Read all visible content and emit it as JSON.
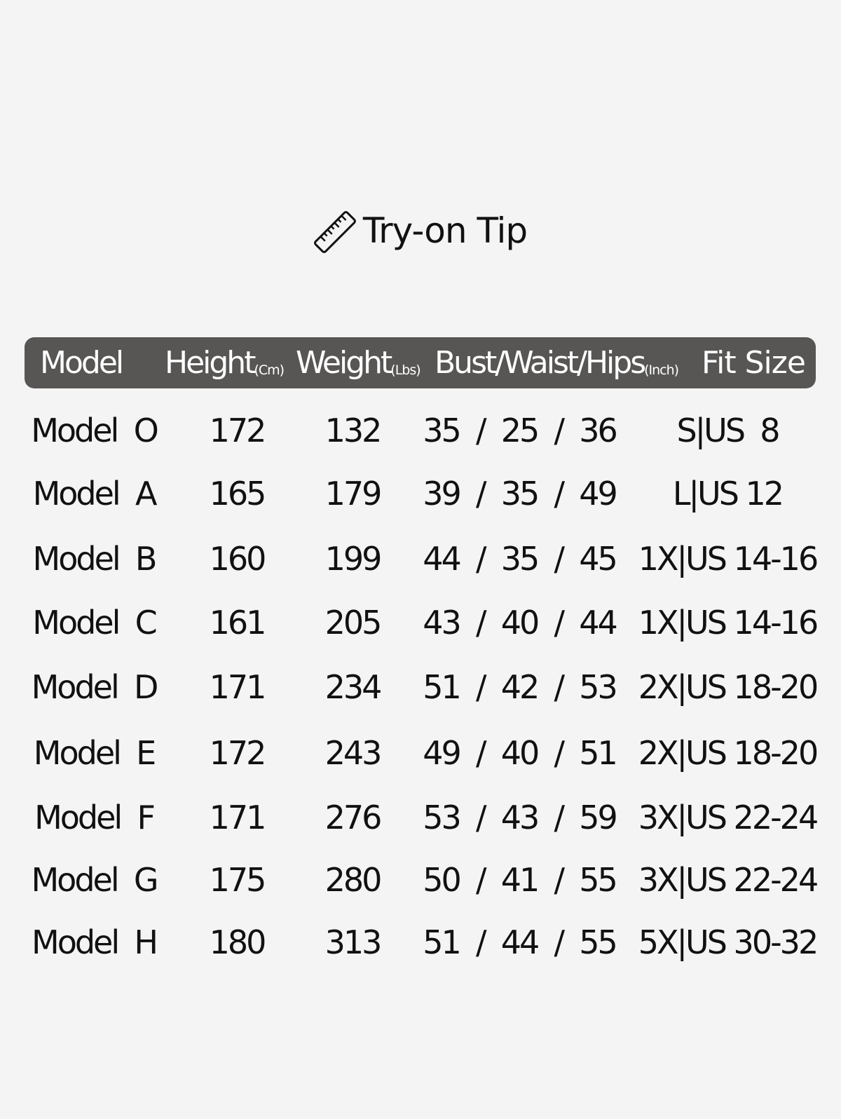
{
  "title": {
    "icon": "ruler-icon",
    "text": "Try-on Tip"
  },
  "header": {
    "model": "Model",
    "height": "Height",
    "height_unit": "(Cm)",
    "weight": "Weight",
    "weight_unit": "(Lbs)",
    "bwh": "Bust/Waist/Hips",
    "bwh_unit": "(Inch)",
    "fit": "Fit Size"
  },
  "colors": {
    "header_bg": "#575655",
    "background": "#f4f4f4"
  },
  "rows": [
    {
      "model": "Model  O",
      "height": "172",
      "weight": "132",
      "bwh": "35  /  25  /  36",
      "fit": "S|US  8"
    },
    {
      "model": "Model  A",
      "height": "165",
      "weight": "179",
      "bwh": "39  /  35  /  49",
      "fit": "L|US 12"
    },
    {
      "model": "Model  B",
      "height": "160",
      "weight": "199",
      "bwh": "44  /  35  /  45",
      "fit": "1X|US 14-16"
    },
    {
      "model": "Model  C",
      "height": "161",
      "weight": "205",
      "bwh": "43  /  40  /  44",
      "fit": "1X|US 14-16"
    },
    {
      "model": "Model  D",
      "height": "171",
      "weight": "234",
      "bwh": "51  /  42  /  53",
      "fit": "2X|US 18-20"
    },
    {
      "model": "Model  E",
      "height": "172",
      "weight": "243",
      "bwh": "49  /  40  /  51",
      "fit": "2X|US 18-20"
    },
    {
      "model": "Model  F",
      "height": "171",
      "weight": "276",
      "bwh": "53  /  43  /  59",
      "fit": "3X|US 22-24"
    },
    {
      "model": "Model  G",
      "height": "175",
      "weight": "280",
      "bwh": "50  /  41  /  55",
      "fit": "3X|US 22-24"
    },
    {
      "model": "Model  H",
      "height": "180",
      "weight": "313",
      "bwh": "51  /  44  /  55",
      "fit": "5X|US 30-32"
    }
  ]
}
